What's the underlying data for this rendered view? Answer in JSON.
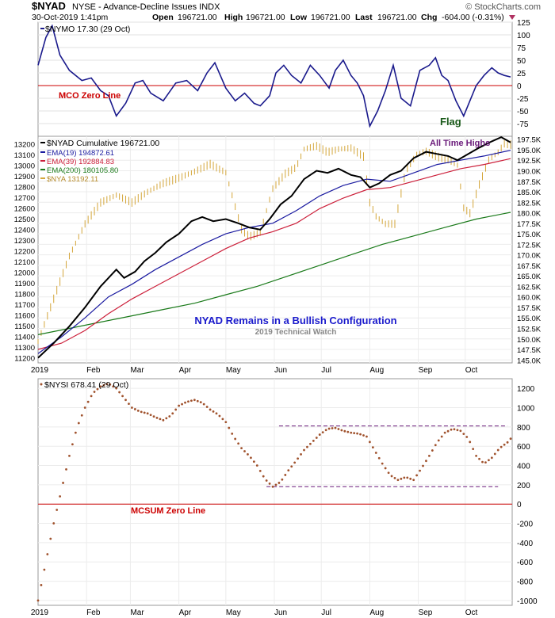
{
  "header": {
    "symbol": "$NYAD",
    "description": "NYSE - Advance-Decline Issues INDX",
    "brand": "© StockCharts.com",
    "datetime": "30-Oct-2019 1:41pm",
    "open_label": "Open",
    "open": "196721.00",
    "high_label": "High",
    "high": "196721.00",
    "low_label": "Low",
    "low": "196721.00",
    "last_label": "Last",
    "last": "196721.00",
    "chg_label": "Chg",
    "chg": "-604.00 (-0.31%)"
  },
  "colors": {
    "nymo": "#1a1a8c",
    "zero": "#cc0000",
    "nyad": "#000000",
    "ema19": "#1a1aa0",
    "ema39": "#cc1f3a",
    "ema200": "#1a7a1a",
    "nya": "#d4a63a",
    "nysi": "#a0522d",
    "channel": "#6a1a7a",
    "annot_blue": "#1a1acc",
    "annot_purple": "#6a1a7a",
    "annot_green": "#1a5a1a"
  },
  "chart_data": [
    {
      "type": "line",
      "legend": "$NYMO 17.30 (29 Oct)",
      "zero_label": "MCO Zero Line",
      "annotation": "Flag",
      "ylim": [
        -100,
        125
      ],
      "yticks": [
        125,
        100,
        75,
        50,
        25,
        0,
        -25,
        -50,
        -75
      ],
      "x_days": [
        0,
        5,
        9,
        14,
        20,
        28,
        34,
        40,
        45,
        50,
        56,
        62,
        67,
        72,
        80,
        88,
        95,
        102,
        108,
        113,
        120,
        126,
        132,
        138,
        142,
        148,
        152,
        157,
        162,
        168,
        174,
        180,
        186,
        190,
        195,
        200,
        204,
        208,
        212,
        217,
        222,
        227,
        232,
        238,
        244,
        250,
        254,
        258,
        262,
        267,
        272,
        276,
        280,
        285,
        290,
        294,
        298,
        302
      ],
      "values": [
        40,
        95,
        118,
        60,
        30,
        10,
        15,
        -10,
        -20,
        -60,
        -35,
        5,
        10,
        -15,
        -30,
        5,
        10,
        -10,
        25,
        45,
        -5,
        -30,
        -15,
        -35,
        -40,
        -20,
        25,
        40,
        20,
        5,
        40,
        20,
        -5,
        30,
        50,
        20,
        5,
        -20,
        -80,
        -50,
        -10,
        40,
        -25,
        -40,
        30,
        40,
        55,
        20,
        10,
        -30,
        -60,
        -30,
        0,
        20,
        35,
        25,
        20,
        17
      ]
    },
    {
      "type": "line",
      "legends": [
        "$NYAD Cumulative 196721.00",
        "EMA(19) 194872.61",
        "EMA(39) 192884.83",
        "EMA(200) 180105.80",
        "$NYA 13192.11"
      ],
      "annotations": [
        "All Time Highs",
        "NYAD Remains in a Bullish Configuration",
        "2019 Technical Watch"
      ],
      "xticks": [
        "2019",
        "Feb",
        "Mar",
        "Apr",
        "May",
        "Jun",
        "Jul",
        "Aug",
        "Sep",
        "Oct"
      ],
      "xtick_days": [
        0,
        31,
        59,
        90,
        120,
        151,
        181,
        212,
        243,
        273
      ],
      "left_axis": [
        13200,
        13100,
        13000,
        12900,
        12800,
        12700,
        12600,
        12500,
        12400,
        12300,
        12200,
        12100,
        12000,
        11900,
        11800,
        11700,
        11600,
        11500,
        11400,
        11300,
        11200
      ],
      "right_axis": [
        "197.5K",
        "195.0K",
        "192.5K",
        "190.0K",
        "187.5K",
        "185.0K",
        "182.5K",
        "180.0K",
        "177.5K",
        "175.0K",
        "172.5K",
        "170.0K",
        "167.5K",
        "165.0K",
        "162.5K",
        "160.0K",
        "157.5K",
        "155.0K",
        "152.5K",
        "150.0K",
        "147.5K",
        "145.0K"
      ],
      "left_ylim": [
        11150,
        13270
      ],
      "right_ylim": [
        144300,
        198200
      ],
      "nya": {
        "x_days": [
          0,
          10,
          20,
          30,
          40,
          50,
          60,
          70,
          80,
          90,
          100,
          110,
          120,
          130,
          135,
          142,
          150,
          158,
          165,
          170,
          178,
          185,
          192,
          200,
          208,
          212,
          216,
          222,
          228,
          235,
          242,
          248,
          255,
          262,
          268,
          272,
          276,
          282,
          288,
          294,
          298,
          302
        ],
        "values": [
          11350,
          11750,
          12150,
          12450,
          12650,
          12720,
          12650,
          12750,
          12830,
          12880,
          12940,
          13010,
          12930,
          12400,
          12330,
          12370,
          12780,
          12920,
          12980,
          13150,
          13180,
          13120,
          13150,
          13160,
          13080,
          12650,
          12520,
          12450,
          12450,
          12950,
          13100,
          13130,
          13080,
          13050,
          13000,
          12600,
          12550,
          12820,
          13050,
          13120,
          13200,
          13192
        ]
      },
      "nyad": {
        "x_days": [
          0,
          10,
          20,
          30,
          40,
          50,
          55,
          62,
          68,
          75,
          82,
          90,
          98,
          105,
          112,
          120,
          128,
          135,
          142,
          148,
          155,
          162,
          170,
          178,
          185,
          192,
          200,
          206,
          212,
          218,
          225,
          232,
          240,
          248,
          255,
          262,
          268,
          275,
          282,
          290,
          296,
          302
        ],
        "values": [
          145500,
          149000,
          153000,
          157500,
          162500,
          166500,
          164500,
          166000,
          168500,
          170500,
          173000,
          175000,
          178000,
          179000,
          178000,
          178500,
          177500,
          176500,
          176000,
          178500,
          182000,
          184000,
          188000,
          190000,
          189500,
          190500,
          189000,
          188500,
          186000,
          187000,
          189000,
          190000,
          193000,
          194500,
          194000,
          193500,
          192500,
          194000,
          195500,
          197000,
          198000,
          196721
        ]
      },
      "ema19": {
        "x_days": [
          0,
          15,
          30,
          45,
          60,
          75,
          90,
          105,
          120,
          135,
          150,
          165,
          180,
          195,
          210,
          225,
          240,
          255,
          270,
          285,
          302
        ],
        "values": [
          146500,
          150500,
          155000,
          160000,
          163000,
          166500,
          169500,
          172500,
          175000,
          176500,
          177500,
          180500,
          184000,
          186500,
          188000,
          187500,
          189500,
          191500,
          192500,
          193500,
          194873
        ]
      },
      "ema39": {
        "x_days": [
          0,
          15,
          30,
          45,
          60,
          75,
          90,
          105,
          120,
          135,
          150,
          165,
          180,
          195,
          210,
          225,
          240,
          255,
          270,
          285,
          302
        ],
        "values": [
          147500,
          149000,
          152000,
          156000,
          159500,
          162500,
          165500,
          168500,
          171500,
          174000,
          175500,
          177500,
          181000,
          183500,
          185500,
          186000,
          187500,
          189000,
          190500,
          191500,
          192885
        ]
      },
      "ema200": {
        "x_days": [
          0,
          20,
          40,
          60,
          80,
          100,
          120,
          140,
          160,
          180,
          200,
          220,
          240,
          260,
          280,
          302
        ],
        "values": [
          151000,
          152500,
          154000,
          155500,
          157000,
          158500,
          160500,
          162500,
          165000,
          167500,
          170000,
          172500,
          174500,
          176500,
          178500,
          180106
        ]
      }
    },
    {
      "type": "line",
      "legend": "$NYSI 678.41 (29 Oct)",
      "zero_label": "MCSUM Zero Line",
      "ylim": [
        -1050,
        1300
      ],
      "yticks": [
        1200,
        1000,
        800,
        600,
        400,
        200,
        0,
        -200,
        -400,
        -600,
        -800,
        -1000
      ],
      "xticks": [
        "2019",
        "Feb",
        "Mar",
        "Apr",
        "May",
        "Jun",
        "Jul",
        "Aug",
        "Sep",
        "Oct"
      ],
      "xtick_days": [
        0,
        31,
        59,
        90,
        120,
        151,
        181,
        212,
        243,
        273
      ],
      "channel_top": 810,
      "channel_bottom": 180,
      "x_days": [
        0,
        5,
        10,
        15,
        20,
        25,
        30,
        35,
        40,
        45,
        50,
        55,
        60,
        65,
        70,
        75,
        80,
        85,
        90,
        95,
        100,
        105,
        110,
        115,
        120,
        125,
        130,
        135,
        140,
        145,
        150,
        155,
        160,
        165,
        170,
        175,
        180,
        185,
        190,
        195,
        200,
        205,
        210,
        215,
        220,
        225,
        230,
        235,
        240,
        245,
        250,
        255,
        260,
        265,
        270,
        275,
        280,
        285,
        290,
        295,
        300,
        302
      ],
      "values": [
        -1000,
        -600,
        -200,
        150,
        500,
        800,
        1000,
        1150,
        1220,
        1250,
        1200,
        1100,
        1000,
        960,
        940,
        900,
        870,
        920,
        1020,
        1060,
        1080,
        1050,
        980,
        930,
        850,
        700,
        580,
        500,
        400,
        260,
        180,
        230,
        350,
        450,
        560,
        640,
        720,
        780,
        790,
        760,
        740,
        730,
        700,
        560,
        420,
        300,
        250,
        280,
        250,
        370,
        500,
        640,
        740,
        780,
        760,
        680,
        500,
        420,
        480,
        580,
        640,
        678
      ]
    }
  ]
}
